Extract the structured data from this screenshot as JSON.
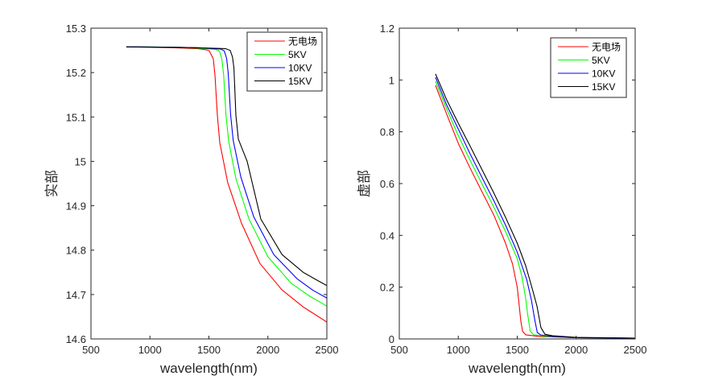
{
  "chart_data": [
    {
      "type": "line",
      "title": "",
      "xlabel": "wavelength(nm)",
      "ylabel": "实部",
      "xlim": [
        500,
        2500
      ],
      "ylim": [
        14.6,
        15.3
      ],
      "xticks": [
        500,
        1000,
        1500,
        2000,
        2500
      ],
      "xtick_labels": [
        "500",
        "1000",
        "1500",
        "2000",
        "2500"
      ],
      "yticks": [
        14.6,
        14.7,
        14.8,
        14.9,
        15.0,
        15.1,
        15.2,
        15.3
      ],
      "ytick_labels": [
        "14.6",
        "14.7",
        "14.8",
        "14.9",
        "15",
        "15.1",
        "15.2",
        "15.3"
      ],
      "grid": false,
      "legend_position": "top-right",
      "series": [
        {
          "name": "无电场",
          "color": "#ff0000",
          "x": [
            800,
            1200,
            1400,
            1480,
            1503,
            1537,
            1551,
            1572,
            1592,
            1660,
            1776,
            1933,
            2118,
            2300,
            2500
          ],
          "y": [
            15.258,
            15.256,
            15.254,
            15.251,
            15.249,
            15.231,
            15.195,
            15.104,
            15.042,
            14.952,
            14.861,
            14.77,
            14.711,
            14.672,
            14.638
          ]
        },
        {
          "name": "5KV",
          "color": "#00ff00",
          "x": [
            800,
            1200,
            1400,
            1560,
            1590,
            1610,
            1625,
            1645,
            1668,
            1730,
            1840,
            2000,
            2200,
            2350,
            2500
          ],
          "y": [
            15.258,
            15.257,
            15.255,
            15.252,
            15.248,
            15.23,
            15.195,
            15.104,
            15.045,
            14.96,
            14.87,
            14.785,
            14.725,
            14.697,
            14.674
          ]
        },
        {
          "name": "10KV",
          "color": "#0000ff",
          "x": [
            800,
            1200,
            1400,
            1600,
            1630,
            1650,
            1664,
            1684,
            1706,
            1770,
            1880,
            2050,
            2250,
            2380,
            2500
          ],
          "y": [
            15.258,
            15.257,
            15.256,
            15.253,
            15.249,
            15.232,
            15.198,
            15.104,
            15.047,
            14.965,
            14.875,
            14.79,
            14.735,
            14.71,
            14.692
          ]
        },
        {
          "name": "15KV",
          "color": "#000000",
          "x": [
            800,
            1200,
            1400,
            1640,
            1680,
            1700,
            1712,
            1729,
            1750,
            1824,
            1940,
            2120,
            2300,
            2400,
            2500
          ],
          "y": [
            15.258,
            15.257,
            15.256,
            15.254,
            15.25,
            15.235,
            15.21,
            15.104,
            15.05,
            15.0,
            14.87,
            14.79,
            14.75,
            14.735,
            14.72
          ]
        }
      ]
    },
    {
      "type": "line",
      "title": "",
      "xlabel": "wavelength(nm)",
      "ylabel": "虚部",
      "xlim": [
        500,
        2500
      ],
      "ylim": [
        0,
        1.2
      ],
      "xticks": [
        500,
        1000,
        1500,
        2000,
        2500
      ],
      "xtick_labels": [
        "500",
        "1000",
        "1500",
        "2000",
        "2500"
      ],
      "yticks": [
        0,
        0.2,
        0.4,
        0.6,
        0.8,
        1.0,
        1.2
      ],
      "ytick_labels": [
        "0",
        "0.2",
        "0.4",
        "0.6",
        "0.8",
        "1",
        "1.2"
      ],
      "grid": false,
      "legend_position": "top-right",
      "series": [
        {
          "name": "无电场",
          "color": "#ff0000",
          "x": [
            807,
            900,
            1000,
            1100,
            1200,
            1300,
            1400,
            1460,
            1500,
            1517,
            1530,
            1545,
            1572,
            1700,
            2000,
            2500
          ],
          "y": [
            0.979,
            0.87,
            0.755,
            0.66,
            0.57,
            0.48,
            0.37,
            0.29,
            0.2,
            0.127,
            0.07,
            0.03,
            0.016,
            0.009,
            0.005,
            0.003
          ]
        },
        {
          "name": "5KV",
          "color": "#00ff00",
          "x": [
            807,
            900,
            1000,
            1100,
            1200,
            1300,
            1400,
            1500,
            1540,
            1570,
            1590,
            1610,
            1640,
            1750,
            2000,
            2500
          ],
          "y": [
            0.995,
            0.89,
            0.785,
            0.69,
            0.6,
            0.51,
            0.415,
            0.31,
            0.24,
            0.16,
            0.09,
            0.03,
            0.016,
            0.01,
            0.005,
            0.003
          ]
        },
        {
          "name": "10KV",
          "color": "#0000ff",
          "x": [
            807,
            900,
            1000,
            1100,
            1200,
            1300,
            1400,
            1500,
            1580,
            1620,
            1650,
            1670,
            1700,
            1800,
            2000,
            2500
          ],
          "y": [
            1.01,
            0.905,
            0.81,
            0.715,
            0.625,
            0.535,
            0.44,
            0.335,
            0.23,
            0.15,
            0.07,
            0.025,
            0.015,
            0.01,
            0.005,
            0.003
          ]
        },
        {
          "name": "15KV",
          "color": "#000000",
          "x": [
            807,
            900,
            1000,
            1100,
            1200,
            1300,
            1400,
            1500,
            1572,
            1630,
            1667,
            1701,
            1735,
            1800,
            2000,
            2500
          ],
          "y": [
            1.023,
            0.925,
            0.833,
            0.745,
            0.655,
            0.565,
            0.47,
            0.37,
            0.283,
            0.19,
            0.127,
            0.044,
            0.018,
            0.012,
            0.006,
            0.003
          ]
        }
      ]
    }
  ]
}
